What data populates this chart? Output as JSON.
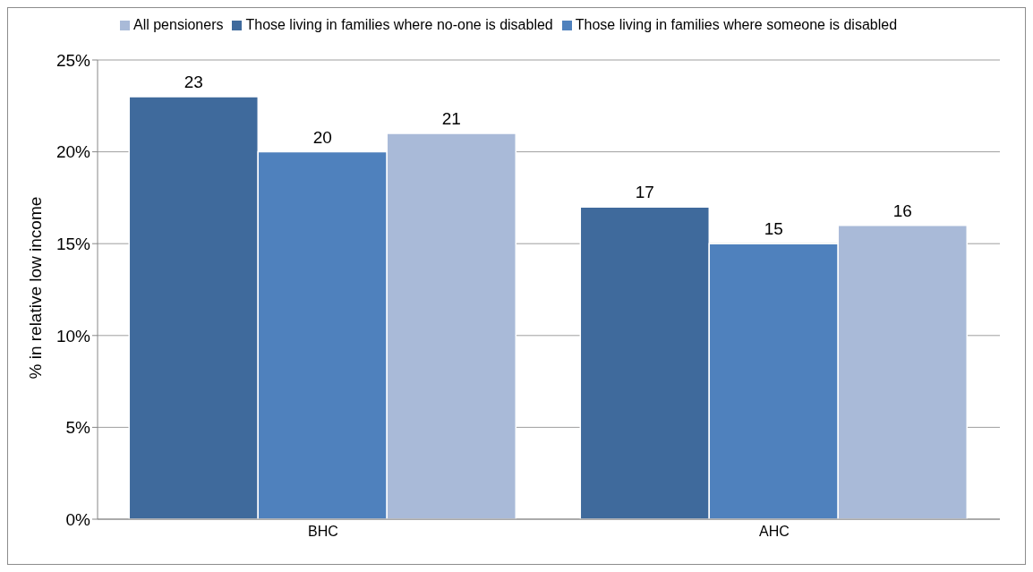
{
  "chart_data": {
    "type": "bar",
    "ylabel": "% in relative low income",
    "categories": [
      "BHC",
      "AHC"
    ],
    "series": [
      {
        "name": "Those living in families where no-one is disabled",
        "color": "#3f6a9c",
        "values": [
          23,
          17
        ]
      },
      {
        "name": "Those living in families where someone is disabled",
        "color": "#4f81bd",
        "values": [
          20,
          15
        ]
      },
      {
        "name": "All pensioners",
        "color": "#a9bad8",
        "values": [
          21,
          16
        ]
      }
    ],
    "ylim": [
      0,
      25
    ],
    "yticks": [
      {
        "value": 0,
        "label": "0%"
      },
      {
        "value": 5,
        "label": "5%"
      },
      {
        "value": 10,
        "label": "10%"
      },
      {
        "value": 15,
        "label": "15%"
      },
      {
        "value": 20,
        "label": "20%"
      },
      {
        "value": 25,
        "label": "25%"
      }
    ],
    "grid": "y",
    "legend": "top",
    "data_labels": true
  }
}
